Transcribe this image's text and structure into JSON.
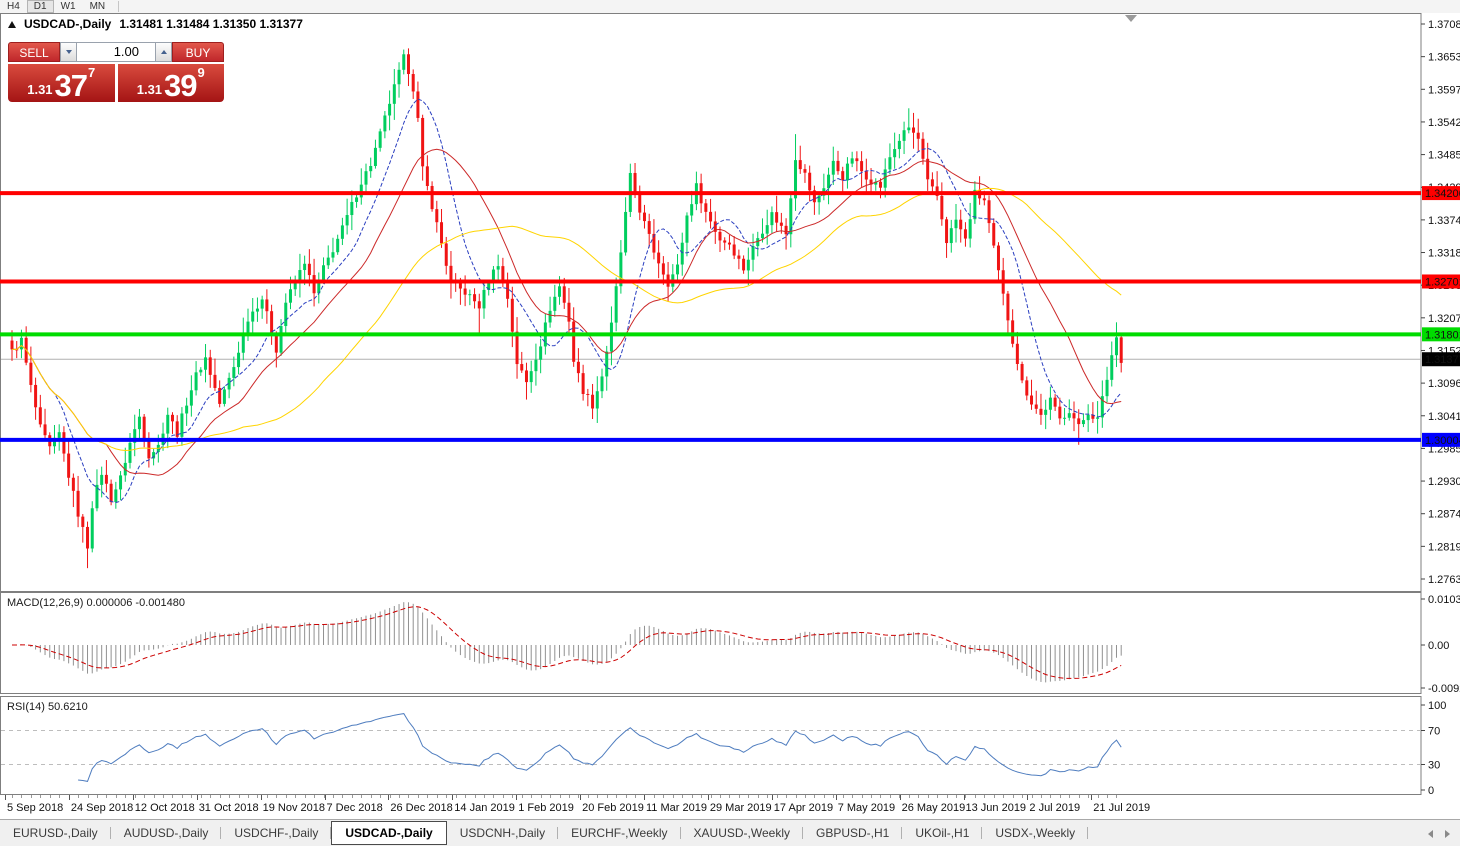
{
  "toolbar": {
    "timeframes": [
      {
        "label": "H4",
        "active": false
      },
      {
        "label": "D1",
        "active": true
      },
      {
        "label": "W1",
        "active": false
      },
      {
        "label": "MN",
        "active": false
      }
    ]
  },
  "chart_header": {
    "symbol": "USDCAD-,Daily",
    "ohlc_text": "1.31481 1.31484 1.31350 1.31377"
  },
  "trade_panel": {
    "sell_label": "SELL",
    "buy_label": "BUY",
    "volume_value": "1.00",
    "sell_price": {
      "prefix": "1.31",
      "big": "37",
      "sup": "7"
    },
    "buy_price": {
      "prefix": "1.31",
      "big": "39",
      "sup": "9"
    }
  },
  "chart_data": {
    "type": "candlestick",
    "title": "USDCAD-,Daily",
    "ohlc_display": {
      "open": 1.31481,
      "high": 1.31484,
      "low": 1.3135,
      "close": 1.31377
    },
    "current_price": 1.31377,
    "current_price_label": "1.31377",
    "y_top": 1.37085,
    "y_bottom": 1.27635,
    "y_axis_ticks": [
      "1.37085",
      "1.36530",
      "1.35975",
      "1.35420",
      "1.34850",
      "1.34295",
      "1.33740",
      "1.33185",
      "1.32630",
      "1.32075",
      "1.31520",
      "1.30965",
      "1.30410",
      "1.29855",
      "1.29300",
      "1.28745",
      "1.28190",
      "1.27635"
    ],
    "x_labels": [
      "5 Sep 2018",
      "24 Sep 2018",
      "12 Oct 2018",
      "31 Oct 2018",
      "19 Nov 2018",
      "7 Dec 2018",
      "26 Dec 2018",
      "14 Jan 2019",
      "1 Feb 2019",
      "20 Feb 2019",
      "11 Mar 2019",
      "29 Mar 2019",
      "17 Apr 2019",
      "7 May 2019",
      "26 May 2019",
      "13 Jun 2019",
      "2 Jul 2019",
      "21 Jul 2019"
    ],
    "n_candles": 236,
    "close_keypoints": [
      [
        0,
        1.315
      ],
      [
        2,
        1.317
      ],
      [
        4,
        1.309
      ],
      [
        6,
        1.302
      ],
      [
        8,
        1.2985
      ],
      [
        10,
        1.301
      ],
      [
        12,
        1.294
      ],
      [
        14,
        1.2875
      ],
      [
        16,
        1.282
      ],
      [
        17,
        1.289
      ],
      [
        19,
        1.2945
      ],
      [
        21,
        1.29
      ],
      [
        23,
        1.2935
      ],
      [
        25,
        1.2995
      ],
      [
        27,
        1.304
      ],
      [
        29,
        1.2975
      ],
      [
        31,
        1.299
      ],
      [
        33,
        1.3045
      ],
      [
        35,
        1.3012
      ],
      [
        37,
        1.3065
      ],
      [
        39,
        1.311
      ],
      [
        41,
        1.314
      ],
      [
        44,
        1.3062
      ],
      [
        47,
        1.3125
      ],
      [
        50,
        1.3208
      ],
      [
        53,
        1.3242
      ],
      [
        56,
        1.3155
      ],
      [
        58,
        1.3235
      ],
      [
        60,
        1.3268
      ],
      [
        62,
        1.3305
      ],
      [
        64,
        1.3248
      ],
      [
        66,
        1.3292
      ],
      [
        68,
        1.3325
      ],
      [
        70,
        1.336
      ],
      [
        72,
        1.34
      ],
      [
        74,
        1.344
      ],
      [
        76,
        1.347
      ],
      [
        78,
        1.352
      ],
      [
        80,
        1.3575
      ],
      [
        82,
        1.3625
      ],
      [
        83,
        1.365
      ],
      [
        84,
        1.363
      ],
      [
        85,
        1.36
      ],
      [
        86,
        1.3545
      ],
      [
        87,
        1.346
      ],
      [
        89,
        1.34
      ],
      [
        91,
        1.3335
      ],
      [
        93,
        1.3265
      ],
      [
        96,
        1.3252
      ],
      [
        99,
        1.3228
      ],
      [
        101,
        1.3272
      ],
      [
        103,
        1.3302
      ],
      [
        105,
        1.3242
      ],
      [
        107,
        1.3132
      ],
      [
        109,
        1.3098
      ],
      [
        112,
        1.3165
      ],
      [
        114,
        1.3225
      ],
      [
        116,
        1.3262
      ],
      [
        118,
        1.3205
      ],
      [
        119,
        1.3135
      ],
      [
        121,
        1.3085
      ],
      [
        123,
        1.306
      ],
      [
        125,
        1.311
      ],
      [
        127,
        1.3195
      ],
      [
        129,
        1.332
      ],
      [
        131,
        1.3448
      ],
      [
        133,
        1.3392
      ],
      [
        136,
        1.3322
      ],
      [
        139,
        1.3268
      ],
      [
        141,
        1.3295
      ],
      [
        143,
        1.3382
      ],
      [
        145,
        1.3432
      ],
      [
        147,
        1.3388
      ],
      [
        150,
        1.3342
      ],
      [
        152,
        1.3335
      ],
      [
        155,
        1.3292
      ],
      [
        158,
        1.3345
      ],
      [
        161,
        1.3385
      ],
      [
        164,
        1.3352
      ],
      [
        166,
        1.3482
      ],
      [
        168,
        1.3452
      ],
      [
        170,
        1.3402
      ],
      [
        172,
        1.3432
      ],
      [
        174,
        1.3472
      ],
      [
        176,
        1.3448
      ],
      [
        178,
        1.3482
      ],
      [
        180,
        1.3458
      ],
      [
        182,
        1.3442
      ],
      [
        184,
        1.3432
      ],
      [
        186,
        1.3482
      ],
      [
        188,
        1.3512
      ],
      [
        190,
        1.3532
      ],
      [
        192,
        1.3512
      ],
      [
        194,
        1.3438
      ],
      [
        196,
        1.3415
      ],
      [
        198,
        1.334
      ],
      [
        200,
        1.3375
      ],
      [
        202,
        1.334
      ],
      [
        204,
        1.342
      ],
      [
        206,
        1.3408
      ],
      [
        208,
        1.3325
      ],
      [
        210,
        1.3245
      ],
      [
        212,
        1.317
      ],
      [
        214,
        1.3098
      ],
      [
        216,
        1.3065
      ],
      [
        218,
        1.3042
      ],
      [
        220,
        1.3068
      ],
      [
        222,
        1.3035
      ],
      [
        224,
        1.3052
      ],
      [
        226,
        1.3022
      ],
      [
        228,
        1.3048
      ],
      [
        230,
        1.3035
      ],
      [
        232,
        1.3105
      ],
      [
        233,
        1.3145
      ],
      [
        234,
        1.3175
      ],
      [
        235,
        1.3138
      ]
    ],
    "wick_overrides": {
      "16": {
        "low": 1.2782
      },
      "83": {
        "high": 1.3665
      },
      "99": {
        "low": 1.3182
      },
      "109": {
        "low": 1.3069
      },
      "123": {
        "low": 1.304
      },
      "131": {
        "high": 1.3468
      },
      "166": {
        "high": 1.3521
      },
      "190": {
        "high": 1.3565
      },
      "226": {
        "low": 1.2992
      },
      "234": {
        "high": 1.3198
      }
    },
    "levels": [
      {
        "price": 1.34206,
        "label": "1.34206",
        "color": "#FF0000",
        "width": 4
      },
      {
        "price": 1.32701,
        "label": "1.32701",
        "color": "#FF0000",
        "width": 4
      },
      {
        "price": 1.31801,
        "label": "1.31801",
        "color": "#00DC00",
        "width": 4
      },
      {
        "price": 1.30004,
        "label": "1.30004",
        "color": "#0000FF",
        "width": 4
      }
    ],
    "colors": {
      "bull": "#00CE5E",
      "bear": "#F01414",
      "ma_fast": "#2B3FC0",
      "ma_mid": "#CC2929",
      "ma_slow": "#FFD400",
      "current_line": "#B0B0B0",
      "current_badge": "#000000",
      "macd_hist": "#909090",
      "macd_signal": "#CC0000",
      "rsi_line": "#4F7DBF",
      "frame": "#7F7F7F"
    },
    "moving_averages": [
      {
        "period": 10,
        "color_key": "ma_fast",
        "dashed": true
      },
      {
        "period": 21,
        "color_key": "ma_mid",
        "dashed": false
      },
      {
        "period": 50,
        "color_key": "ma_slow",
        "dashed": false
      }
    ],
    "indicators": [
      {
        "name": "MACD",
        "header": "MACD(12,26,9) 0.000006 -0.001480",
        "axis_labels": [
          "0.010311",
          "0.00",
          "-0.009203"
        ],
        "axis_max": 0.010311,
        "axis_min": -0.009203,
        "params": [
          12,
          26,
          9
        ]
      },
      {
        "name": "RSI",
        "header": "RSI(14) 50.6210",
        "axis_labels": [
          "100",
          "70",
          "30",
          "0"
        ],
        "levels": [
          70,
          30
        ],
        "period": 14
      }
    ],
    "shift_marker": true
  },
  "tabs": {
    "items": [
      "EURUSD-,Daily",
      "AUDUSD-,Daily",
      "USDCHF-,Daily",
      "USDCAD-,Daily",
      "USDCNH-,Daily",
      "EURCHF-,Weekly",
      "XAUUSD-,Weekly",
      "GBPUSD-,H1",
      "UKOil-,H1",
      "USDX-,Weekly"
    ],
    "active_index": 3
  }
}
